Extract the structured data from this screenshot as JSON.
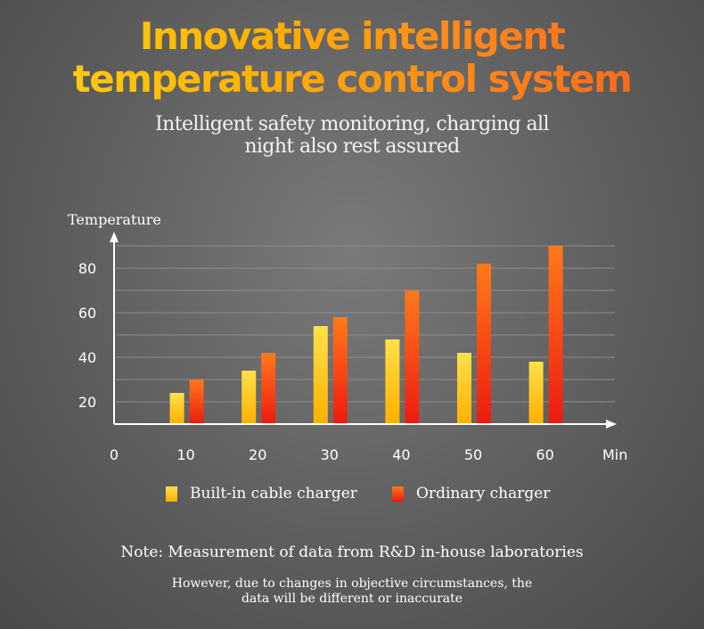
{
  "header": {
    "title_line1": "Innovative intelligent",
    "title_line2": "temperature control system",
    "subtitle_line1": "Intelligent safety monitoring, charging all",
    "subtitle_line2": "night also rest assured"
  },
  "chart_data": {
    "type": "bar",
    "ylabel": "Temperature",
    "xlabel": "Min",
    "categories": [
      "10",
      "20",
      "30",
      "40",
      "50",
      "60"
    ],
    "x_ticks": [
      "0",
      "10",
      "20",
      "30",
      "40",
      "50",
      "60"
    ],
    "y_ticks": [
      "20",
      "40",
      "60",
      "80"
    ],
    "ylim": [
      10,
      92
    ],
    "grid": true,
    "series": [
      {
        "name": "Built-in cable charger",
        "values": [
          24,
          34,
          54,
          48,
          42,
          38
        ],
        "color_top": "#ffe14a",
        "color_bottom": "#ffb000"
      },
      {
        "name": "Ordinary charger",
        "values": [
          30,
          42,
          58,
          70,
          82,
          90
        ],
        "color_top": "#ff7a1a",
        "color_bottom": "#ee1a10"
      }
    ]
  },
  "legend": {
    "item1": "Built-in cable charger",
    "item2": "Ordinary charger"
  },
  "notes": {
    "line1": "Note: Measurement of data from R&D in-house laboratories",
    "line2": "However, due to changes in objective circumstances, the",
    "line3": "data will be different or inaccurate"
  }
}
